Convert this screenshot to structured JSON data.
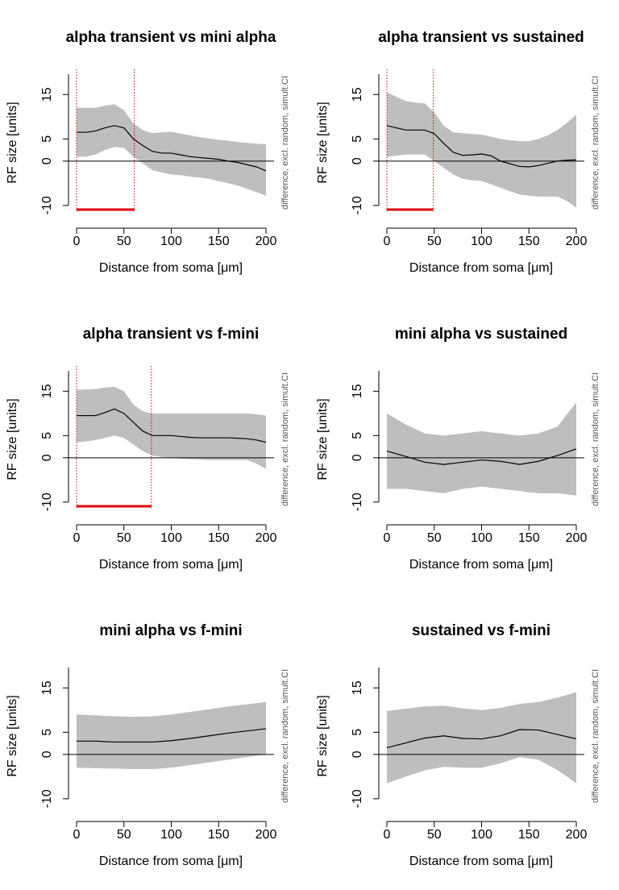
{
  "chart_data": [
    {
      "type": "line",
      "title": "alpha transient vs mini alpha",
      "x_label": "Distance from soma [μm]",
      "y_label": "RF size [units]",
      "note": "difference, excl. random, simult.CI",
      "x": [
        0,
        10,
        20,
        30,
        40,
        50,
        60,
        70,
        80,
        90,
        100,
        110,
        120,
        130,
        140,
        150,
        160,
        170,
        180,
        190,
        200
      ],
      "values": [
        6.5,
        6.5,
        6.8,
        7.5,
        8,
        7.5,
        5,
        3.5,
        2.2,
        1.8,
        1.8,
        1.4,
        1,
        0.8,
        0.6,
        0.4,
        0,
        -0.3,
        -0.8,
        -1.3,
        -2.2
      ],
      "upper": [
        12,
        12,
        12,
        12.5,
        12.8,
        11.5,
        8.5,
        7,
        6.3,
        6.5,
        6.6,
        6.2,
        5.8,
        5.4,
        5.1,
        4.8,
        4.6,
        4.3,
        4.1,
        3.9,
        3.8
      ],
      "lower": [
        1,
        1,
        1.5,
        2.5,
        3.2,
        3,
        1,
        -0.5,
        -2,
        -2.6,
        -3,
        -3.2,
        -3.5,
        -3.7,
        -4,
        -4.5,
        -5,
        -5.5,
        -6.2,
        -7,
        -7.8
      ],
      "significant_range": [
        0,
        61
      ],
      "color": "#000000",
      "band_color": "#bebebe",
      "significance_color": "#e00000",
      "xlim": [
        -8.5,
        208.5
      ],
      "ylim": [
        -11.3,
        19.6
      ],
      "xticks": [
        0,
        50,
        100,
        150,
        200
      ],
      "yticks": [
        -10,
        0,
        5,
        15
      ]
    },
    {
      "type": "line",
      "title": "alpha transient vs sustained",
      "x_label": "Distance from soma [μm]",
      "y_label": "RF size [units]",
      "note": "difference, excl. random, simult.CI",
      "x": [
        0,
        10,
        20,
        30,
        40,
        50,
        60,
        70,
        80,
        90,
        100,
        110,
        120,
        130,
        140,
        150,
        160,
        170,
        180,
        190,
        200
      ],
      "values": [
        8,
        7.5,
        7,
        7,
        7,
        6.2,
        4,
        2,
        1.3,
        1.4,
        1.6,
        1.2,
        0,
        -0.6,
        -1.2,
        -1.3,
        -1,
        -0.5,
        0,
        0.2,
        0.3
      ],
      "upper": [
        15.5,
        14.5,
        13.5,
        13.2,
        13,
        11,
        8,
        6.5,
        6.3,
        6.1,
        6,
        5.5,
        5,
        4.7,
        4.5,
        4.5,
        5,
        5.8,
        7,
        8.6,
        10.5
      ],
      "lower": [
        1,
        1.2,
        1.5,
        1.5,
        1.5,
        0,
        -1.5,
        -3,
        -4,
        -4.3,
        -4.5,
        -5.2,
        -6,
        -6.8,
        -7.5,
        -7.8,
        -8,
        -8,
        -8,
        -9,
        -10.5
      ],
      "significant_range": [
        0,
        49
      ],
      "color": "#000000",
      "band_color": "#bebebe",
      "significance_color": "#e00000",
      "xlim": [
        -8.5,
        208.5
      ],
      "ylim": [
        -11.3,
        19.6
      ],
      "xticks": [
        0,
        50,
        100,
        150,
        200
      ],
      "yticks": [
        -10,
        0,
        5,
        15
      ]
    },
    {
      "type": "line",
      "title": "alpha transient vs f-mini",
      "x_label": "Distance from soma [μm]",
      "y_label": "RF size [units]",
      "note": "difference, excl. random, simult.CI",
      "x": [
        0,
        10,
        20,
        30,
        40,
        50,
        60,
        70,
        80,
        90,
        100,
        110,
        120,
        130,
        140,
        150,
        160,
        170,
        180,
        190,
        200
      ],
      "values": [
        9.5,
        9.5,
        9.5,
        10.2,
        11,
        10,
        8,
        6,
        5,
        5,
        5,
        4.8,
        4.6,
        4.5,
        4.5,
        4.5,
        4.5,
        4.4,
        4.3,
        4,
        3.5
      ],
      "upper": [
        15.3,
        15.4,
        15.5,
        15.8,
        16,
        15,
        12,
        10.5,
        10,
        10,
        10,
        10,
        10,
        10,
        10,
        10,
        10,
        10,
        10,
        9.8,
        9.5
      ],
      "lower": [
        3.5,
        3.7,
        4,
        4.5,
        5,
        4.5,
        3,
        1.5,
        0.5,
        0.2,
        0,
        -0.2,
        -0.3,
        -0.4,
        -0.5,
        -0.5,
        -0.5,
        -0.5,
        -0.5,
        -1.3,
        -2.5
      ],
      "significant_range": [
        0,
        79
      ],
      "color": "#000000",
      "band_color": "#bebebe",
      "significance_color": "#e00000",
      "xlim": [
        -8.5,
        208.5
      ],
      "ylim": [
        -11.3,
        19.6
      ],
      "xticks": [
        0,
        50,
        100,
        150,
        200
      ],
      "yticks": [
        -10,
        0,
        5,
        15
      ]
    },
    {
      "type": "line",
      "title": "mini alpha vs sustained",
      "x_label": "Distance from soma [μm]",
      "y_label": "RF size [units]",
      "note": "difference, excl. random, simult.CI",
      "x": [
        0,
        20,
        40,
        60,
        80,
        100,
        120,
        140,
        160,
        180,
        200
      ],
      "values": [
        1.5,
        0.3,
        -1,
        -1.5,
        -1,
        -0.5,
        -0.8,
        -1.5,
        -0.8,
        0.5,
        2
      ],
      "upper": [
        10,
        7.5,
        5.5,
        5,
        5.5,
        6,
        5.5,
        5,
        5.5,
        7,
        12.5
      ],
      "lower": [
        -7,
        -7,
        -7.5,
        -8,
        -7,
        -6.5,
        -7,
        -7.5,
        -8,
        -8,
        -8.5
      ],
      "color": "#000000",
      "band_color": "#bebebe",
      "xlim": [
        -8.5,
        208.5
      ],
      "ylim": [
        -11.3,
        19.6
      ],
      "xticks": [
        0,
        50,
        100,
        150,
        200
      ],
      "yticks": [
        -10,
        0,
        5,
        15
      ]
    },
    {
      "type": "line",
      "title": "mini alpha vs f-mini",
      "x_label": "Distance from soma [μm]",
      "y_label": "RF size [units]",
      "note": "difference, excl. random, simult.CI",
      "x": [
        0,
        20,
        40,
        60,
        80,
        100,
        120,
        140,
        160,
        180,
        200
      ],
      "values": [
        3,
        3,
        2.8,
        2.8,
        2.8,
        3.1,
        3.6,
        4.2,
        4.8,
        5.3,
        5.8
      ],
      "upper": [
        9,
        8.8,
        8.6,
        8.5,
        8.6,
        9,
        9.6,
        10.2,
        10.8,
        11.3,
        11.8
      ],
      "lower": [
        -3,
        -3.1,
        -3.2,
        -3.3,
        -3.3,
        -3,
        -2.4,
        -1.8,
        -1.2,
        -0.6,
        0
      ],
      "color": "#000000",
      "band_color": "#bebebe",
      "xlim": [
        -8.5,
        208.5
      ],
      "ylim": [
        -11.3,
        19.6
      ],
      "xticks": [
        0,
        50,
        100,
        150,
        200
      ],
      "yticks": [
        -10,
        0,
        5,
        15
      ]
    },
    {
      "type": "line",
      "title": "sustained vs f-mini",
      "x_label": "Distance from soma [μm]",
      "y_label": "RF size [units]",
      "note": "difference, excl. random, simult.CI",
      "x": [
        0,
        20,
        40,
        60,
        80,
        100,
        120,
        140,
        160,
        180,
        200
      ],
      "values": [
        1.5,
        2.6,
        3.7,
        4.2,
        3.6,
        3.5,
        4.2,
        5.6,
        5.5,
        4.5,
        3.5
      ],
      "upper": [
        9.8,
        10.3,
        10.8,
        11,
        10.4,
        10,
        10.5,
        11.4,
        11.8,
        12.8,
        14
      ],
      "lower": [
        -6.5,
        -5,
        -3.6,
        -2.8,
        -3,
        -3,
        -2,
        -0.6,
        -1.2,
        -3.5,
        -6.5
      ],
      "color": "#000000",
      "band_color": "#bebebe",
      "xlim": [
        -8.5,
        208.5
      ],
      "ylim": [
        -11.3,
        19.6
      ],
      "xticks": [
        0,
        50,
        100,
        150,
        200
      ],
      "yticks": [
        -10,
        0,
        5,
        15
      ]
    }
  ]
}
